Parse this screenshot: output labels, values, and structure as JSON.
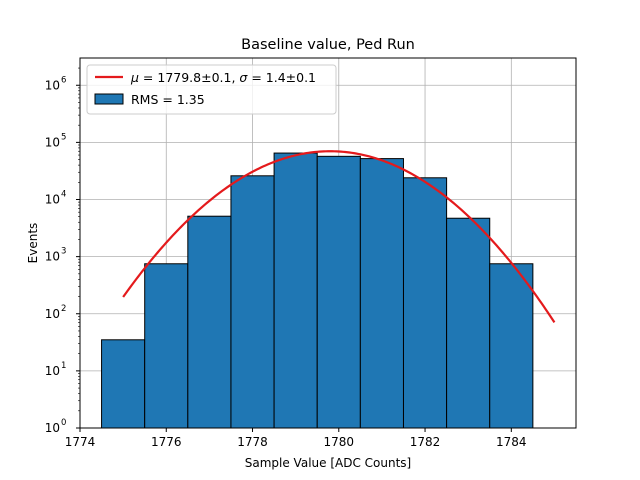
{
  "chart_data": {
    "type": "bar",
    "title": "Baseline value, Ped Run",
    "xlabel": "Sample Value [ADC Counts]",
    "ylabel": "Events",
    "xlim": [
      1774,
      1785.5
    ],
    "ylim": [
      1,
      3000000
    ],
    "yscale": "log",
    "grid": true,
    "legend_position": "top-left",
    "x_ticks": [
      1774,
      1776,
      1778,
      1780,
      1782,
      1784
    ],
    "y_ticks": [
      {
        "value": 1,
        "label": "10",
        "exp": "0"
      },
      {
        "value": 10,
        "label": "10",
        "exp": "1"
      },
      {
        "value": 100,
        "label": "10",
        "exp": "2"
      },
      {
        "value": 1000,
        "label": "10",
        "exp": "3"
      },
      {
        "value": 10000,
        "label": "10",
        "exp": "4"
      },
      {
        "value": 100000,
        "label": "10",
        "exp": "5"
      },
      {
        "value": 1000000,
        "label": "10",
        "exp": "6"
      }
    ],
    "histogram": {
      "name": "RMS = 1.35",
      "color": "#1f77b4",
      "edge_color": "#000000",
      "bins": [
        {
          "left": 1774.5,
          "right": 1775.5,
          "count": 35
        },
        {
          "left": 1775.5,
          "right": 1776.5,
          "count": 750
        },
        {
          "left": 1776.5,
          "right": 1777.5,
          "count": 5100
        },
        {
          "left": 1777.5,
          "right": 1778.5,
          "count": 26000
        },
        {
          "left": 1778.5,
          "right": 1779.5,
          "count": 65000
        },
        {
          "left": 1779.5,
          "right": 1780.5,
          "count": 57000
        },
        {
          "left": 1780.5,
          "right": 1781.5,
          "count": 52000
        },
        {
          "left": 1781.5,
          "right": 1782.5,
          "count": 24000
        },
        {
          "left": 1782.5,
          "right": 1783.5,
          "count": 4700
        },
        {
          "left": 1783.5,
          "right": 1784.5,
          "count": 750
        }
      ]
    },
    "fit": {
      "name_parts": [
        "μ",
        " = 1779.8±0.1, ",
        "σ",
        " = 1.4±0.1"
      ],
      "color": "#e41a1c",
      "type": "gaussian",
      "amplitude": 70000,
      "mu": 1779.8,
      "sigma": 1.4,
      "x_range": [
        1775,
        1785
      ]
    }
  }
}
